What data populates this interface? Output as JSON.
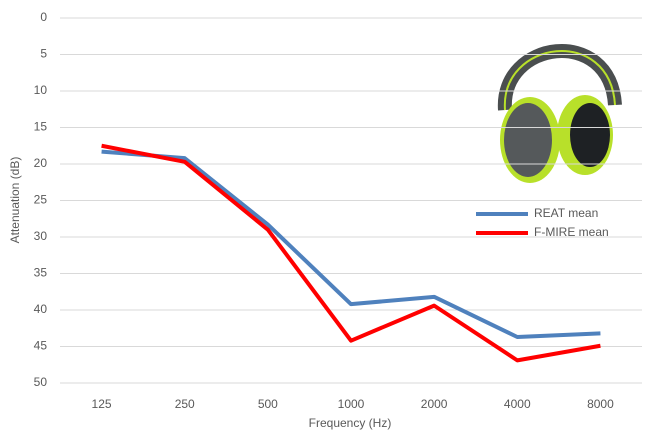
{
  "chart_data": {
    "type": "line",
    "x_label": "Frequency (Hz)",
    "y_label": "Attenuation (dB)",
    "categories": [
      "125",
      "250",
      "500",
      "1000",
      "2000",
      "4000",
      "8000"
    ],
    "series": [
      {
        "name": "REAT mean",
        "color": "#4f81bd",
        "values": [
          18.3,
          19.2,
          28.3,
          39.2,
          38.2,
          43.7,
          43.2
        ]
      },
      {
        "name": "F-MIRE mean",
        "color": "#ff0000",
        "values": [
          17.5,
          19.7,
          29.0,
          44.2,
          39.4,
          46.9,
          44.9
        ]
      }
    ],
    "ylim": [
      0,
      50
    ],
    "yticks": [
      0,
      5,
      10,
      15,
      20,
      25,
      30,
      35,
      40,
      45,
      50
    ],
    "y_inverted": true,
    "grid": true,
    "legend": "right"
  }
}
